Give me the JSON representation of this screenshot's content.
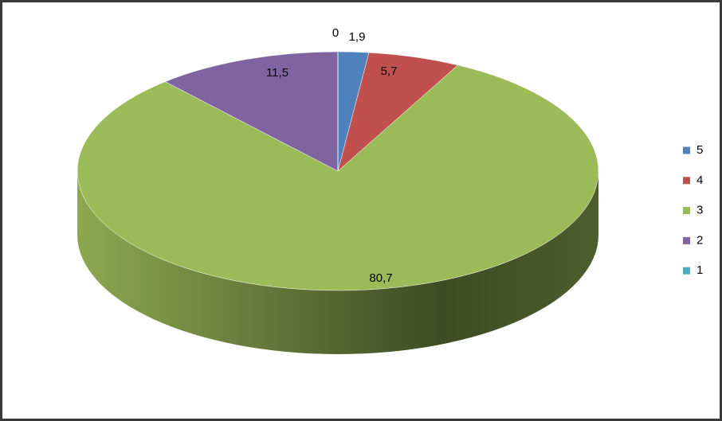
{
  "chart_data": {
    "type": "pie",
    "categories": [
      "5",
      "4",
      "3",
      "2",
      "1"
    ],
    "values": [
      1.9,
      5.7,
      80.7,
      11.5,
      0
    ],
    "value_labels": [
      "1,9",
      "5,7",
      "80,7",
      "11,5",
      "0"
    ],
    "colors": [
      "#4f81bd",
      "#c0504d",
      "#9bbb59",
      "#8064a2",
      "#4bacc6"
    ],
    "legend": "right"
  }
}
